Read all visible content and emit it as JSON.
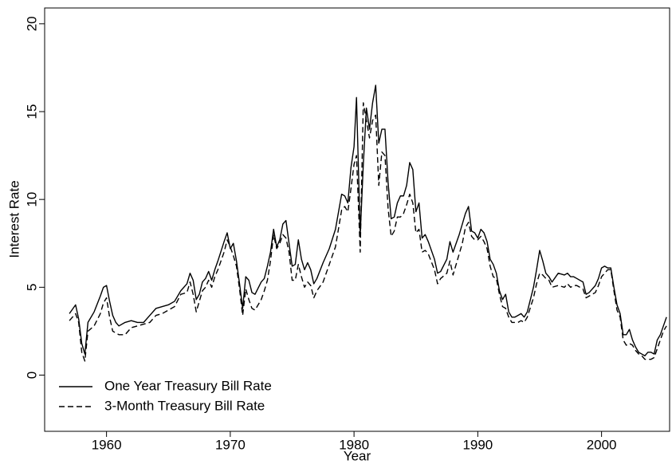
{
  "chart_data": {
    "type": "line",
    "xlabel": "Year",
    "ylabel": "Interest Rate",
    "xlim": [
      1955,
      2005.5
    ],
    "ylim": [
      -3.2,
      20.9
    ],
    "xticks": [
      1960,
      1970,
      1980,
      1990,
      2000
    ],
    "yticks": [
      0,
      5,
      10,
      15,
      20
    ],
    "legend": "lower left",
    "x": [
      1957.0,
      1957.5,
      1957.75,
      1958.0,
      1958.25,
      1958.5,
      1959.0,
      1959.5,
      1959.75,
      1960.0,
      1960.25,
      1960.5,
      1960.75,
      1961.0,
      1961.5,
      1962.0,
      1962.5,
      1963.0,
      1963.5,
      1964.0,
      1964.5,
      1965.0,
      1965.5,
      1966.0,
      1966.5,
      1966.75,
      1967.0,
      1967.25,
      1967.5,
      1967.75,
      1968.0,
      1968.25,
      1968.5,
      1968.75,
      1969.0,
      1969.5,
      1969.75,
      1970.0,
      1970.25,
      1970.5,
      1970.75,
      1971.0,
      1971.25,
      1971.5,
      1971.75,
      1972.0,
      1972.5,
      1972.75,
      1973.0,
      1973.25,
      1973.5,
      1973.75,
      1974.0,
      1974.25,
      1974.5,
      1974.75,
      1975.0,
      1975.25,
      1975.5,
      1975.75,
      1976.0,
      1976.25,
      1976.5,
      1976.75,
      1977.0,
      1977.5,
      1978.0,
      1978.5,
      1979.0,
      1979.25,
      1979.5,
      1979.75,
      1980.0,
      1980.2,
      1980.5,
      1980.75,
      1981.0,
      1981.25,
      1981.5,
      1981.75,
      1982.0,
      1982.25,
      1982.5,
      1982.75,
      1983.0,
      1983.25,
      1983.5,
      1983.75,
      1984.0,
      1984.25,
      1984.5,
      1984.75,
      1985.0,
      1985.25,
      1985.5,
      1985.75,
      1986.0,
      1986.5,
      1986.75,
      1987.0,
      1987.5,
      1987.75,
      1988.0,
      1988.5,
      1988.75,
      1989.0,
      1989.25,
      1989.5,
      1989.75,
      1990.0,
      1990.25,
      1990.5,
      1990.75,
      1991.0,
      1991.25,
      1991.5,
      1991.75,
      1992.0,
      1992.25,
      1992.5,
      1992.75,
      1993.0,
      1993.25,
      1993.5,
      1993.75,
      1994.0,
      1994.5,
      1994.75,
      1995.0,
      1995.25,
      1995.5,
      1995.75,
      1996.0,
      1996.5,
      1997.0,
      1997.25,
      1997.5,
      1997.75,
      1998.0,
      1998.5,
      1998.75,
      1999.0,
      1999.5,
      1999.75,
      2000.0,
      2000.25,
      2000.5,
      2000.75,
      2001.0,
      2001.25,
      2001.5,
      2001.75,
      2002.0,
      2002.25,
      2002.5,
      2002.75,
      2003.0,
      2003.25,
      2003.5,
      2003.75,
      2004.0,
      2004.25,
      2004.5,
      2004.75,
      2005.0,
      2005.25
    ],
    "series": [
      {
        "name": "One Year Treasury Bill Rate",
        "color": "#000000",
        "dash": "solid",
        "values": [
          3.5,
          4.0,
          3.2,
          1.8,
          1.2,
          3.0,
          3.6,
          4.5,
          5.0,
          5.1,
          4.2,
          3.4,
          3.0,
          2.8,
          3.0,
          3.1,
          3.0,
          3.0,
          3.4,
          3.8,
          3.9,
          4.0,
          4.2,
          4.8,
          5.2,
          5.8,
          5.4,
          4.3,
          4.6,
          5.3,
          5.5,
          5.9,
          5.4,
          6.0,
          6.5,
          7.6,
          8.1,
          7.2,
          7.5,
          6.5,
          5.2,
          3.8,
          5.6,
          5.4,
          4.7,
          4.6,
          5.3,
          5.5,
          6.2,
          7.0,
          8.3,
          7.3,
          7.7,
          8.6,
          8.8,
          7.5,
          6.2,
          6.3,
          7.7,
          6.6,
          6.0,
          6.4,
          6.0,
          5.2,
          5.5,
          6.4,
          7.2,
          8.3,
          10.3,
          10.2,
          9.8,
          11.8,
          13.0,
          15.8,
          8.0,
          12.0,
          15.2,
          14.0,
          15.5,
          16.5,
          13.2,
          14.0,
          14.0,
          11.0,
          8.9,
          9.0,
          9.8,
          10.2,
          10.2,
          10.8,
          12.1,
          11.7,
          9.3,
          9.8,
          7.8,
          8.0,
          7.6,
          6.6,
          5.8,
          5.9,
          6.6,
          7.6,
          7.0,
          8.0,
          8.6,
          9.2,
          9.6,
          8.2,
          8.1,
          7.8,
          8.3,
          8.1,
          7.6,
          6.6,
          6.3,
          5.8,
          4.8,
          4.3,
          4.6,
          3.6,
          3.3,
          3.3,
          3.4,
          3.5,
          3.3,
          3.6,
          5.0,
          6.0,
          7.1,
          6.5,
          5.8,
          5.6,
          5.3,
          5.8,
          5.7,
          5.8,
          5.6,
          5.6,
          5.5,
          5.3,
          4.6,
          4.7,
          5.1,
          5.5,
          6.1,
          6.2,
          6.1,
          6.1,
          5.0,
          4.0,
          3.5,
          2.3,
          2.3,
          2.6,
          2.0,
          1.6,
          1.3,
          1.2,
          1.1,
          1.3,
          1.3,
          1.2,
          2.0,
          2.3,
          2.8,
          3.3
        ]
      },
      {
        "name": "3-Month Treasury Bill Rate",
        "color": "#000000",
        "dash": "dashed",
        "values": [
          3.1,
          3.5,
          3.0,
          1.3,
          0.8,
          2.5,
          2.8,
          3.5,
          4.1,
          4.4,
          3.3,
          2.5,
          2.4,
          2.3,
          2.3,
          2.7,
          2.8,
          2.9,
          3.0,
          3.4,
          3.5,
          3.7,
          3.9,
          4.6,
          4.7,
          5.3,
          4.6,
          3.6,
          4.2,
          4.8,
          5.0,
          5.4,
          5.0,
          5.6,
          6.0,
          7.0,
          7.7,
          7.3,
          6.8,
          6.2,
          4.9,
          3.4,
          4.9,
          4.3,
          3.8,
          3.7,
          4.3,
          4.8,
          5.4,
          6.5,
          8.0,
          7.2,
          7.5,
          8.0,
          7.8,
          7.0,
          5.4,
          5.4,
          6.3,
          5.6,
          5.0,
          5.3,
          5.1,
          4.4,
          4.8,
          5.3,
          6.3,
          7.3,
          9.4,
          9.6,
          9.3,
          10.6,
          12.0,
          12.5,
          7.0,
          15.5,
          14.5,
          13.5,
          14.5,
          14.8,
          10.8,
          12.7,
          12.5,
          9.5,
          7.9,
          8.2,
          9.0,
          9.0,
          9.2,
          9.7,
          10.3,
          9.8,
          8.1,
          8.3,
          7.0,
          7.1,
          6.9,
          6.0,
          5.2,
          5.5,
          5.8,
          6.5,
          5.7,
          6.9,
          7.5,
          8.4,
          8.7,
          7.9,
          7.7,
          7.7,
          7.9,
          7.6,
          7.2,
          6.2,
          5.6,
          5.5,
          4.6,
          3.9,
          3.8,
          3.3,
          3.0,
          3.0,
          3.0,
          3.1,
          3.0,
          3.3,
          4.4,
          5.2,
          5.8,
          5.7,
          5.5,
          5.4,
          5.0,
          5.1,
          5.0,
          5.2,
          5.0,
          5.1,
          5.1,
          4.9,
          4.4,
          4.5,
          4.7,
          5.1,
          5.6,
          5.8,
          6.0,
          6.0,
          4.8,
          3.7,
          3.3,
          2.0,
          1.7,
          1.8,
          1.7,
          1.4,
          1.2,
          1.1,
          0.9,
          0.9,
          0.9,
          1.0,
          1.5,
          2.0,
          2.5,
          2.8
        ]
      }
    ]
  }
}
